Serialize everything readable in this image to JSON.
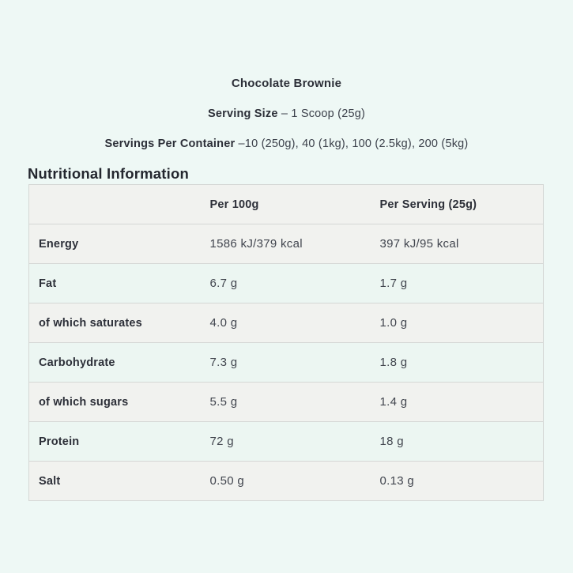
{
  "page": {
    "title": "Chocolate Brownie",
    "serving_size_label": "Serving Size",
    "serving_size_value": "– 1 Scoop (25g)",
    "servings_per_container_label": "Servings Per Container",
    "servings_per_container_value": "–10 (250g), 40 (1kg), 100 (2.5kg), 200 (5kg)",
    "section_heading": "Nutritional Information"
  },
  "table": {
    "columns": [
      "",
      "Per 100g",
      "Per Serving (25g)"
    ],
    "rows": [
      {
        "label": "Energy",
        "per_100g": "1586 kJ/379 kcal",
        "per_serving": "397 kJ/95 kcal",
        "shade": "gray"
      },
      {
        "label": "Fat",
        "per_100g": "6.7 g",
        "per_serving": "1.7 g",
        "shade": "mint"
      },
      {
        "label": "of which saturates",
        "per_100g": "4.0 g",
        "per_serving": "1.0 g",
        "shade": "gray"
      },
      {
        "label": "Carbohydrate",
        "per_100g": "7.3 g",
        "per_serving": "1.8 g",
        "shade": "mint"
      },
      {
        "label": "of which sugars",
        "per_100g": "5.5 g",
        "per_serving": "1.4 g",
        "shade": "gray"
      },
      {
        "label": "Protein",
        "per_100g": "72 g",
        "per_serving": "18 g",
        "shade": "mint"
      },
      {
        "label": "Salt",
        "per_100g": "0.50 g",
        "per_serving": "0.13 g",
        "shade": "gray"
      }
    ]
  },
  "colors": {
    "page_background": "#eef8f5",
    "row_gray": "#f1f2ef",
    "row_mint": "#ecf6f2",
    "table_border": "#d5d7d5",
    "text_dark": "#2c2f38",
    "text_value": "#41454e"
  }
}
